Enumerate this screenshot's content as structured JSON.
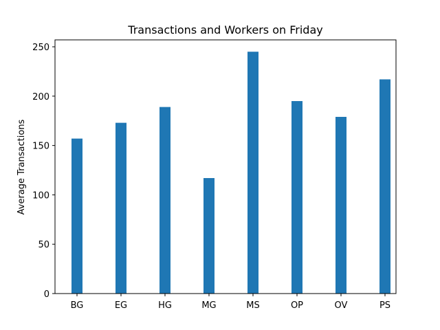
{
  "chart_data": {
    "type": "bar",
    "title": "Transactions and Workers on Friday",
    "xlabel": "",
    "ylabel": "Average Transactions",
    "categories": [
      "BG",
      "EG",
      "HG",
      "MG",
      "MS",
      "OP",
      "OV",
      "PS"
    ],
    "series": [
      {
        "values": [
          157,
          173,
          189,
          117,
          245,
          195,
          179,
          217
        ],
        "color": "#1f77b4"
      }
    ],
    "ylim": [
      0,
      257
    ],
    "yticks": [
      0,
      50,
      100,
      150,
      200,
      250
    ],
    "grid": false,
    "legend": "none"
  }
}
